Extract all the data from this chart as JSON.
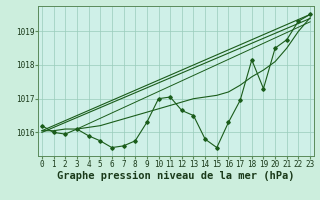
{
  "background_color": "#cceedd",
  "plot_bg_color": "#cff0e8",
  "grid_color": "#99ccbb",
  "line_color": "#1a5c1a",
  "hours": [
    0,
    1,
    2,
    3,
    4,
    5,
    6,
    7,
    8,
    9,
    10,
    11,
    12,
    13,
    14,
    15,
    16,
    17,
    18,
    19,
    20,
    21,
    22,
    23
  ],
  "pressure_actual": [
    1016.2,
    1016.0,
    1015.95,
    1016.1,
    1015.9,
    1015.75,
    1015.55,
    1015.6,
    1015.75,
    1016.3,
    1017.0,
    1017.05,
    1016.65,
    1016.5,
    1015.8,
    1015.55,
    1016.3,
    1016.95,
    1018.15,
    1017.3,
    1018.5,
    1018.75,
    1019.3,
    1019.5
  ],
  "pressure_smooth1": [
    1016.05,
    1016.05,
    1016.1,
    1016.1,
    1016.15,
    1016.2,
    1016.3,
    1016.4,
    1016.5,
    1016.6,
    1016.7,
    1016.8,
    1016.9,
    1017.0,
    1017.05,
    1017.1,
    1017.2,
    1017.4,
    1017.65,
    1017.85,
    1018.1,
    1018.5,
    1019.0,
    1019.4
  ],
  "pressure_smooth2": [
    1016.0,
    1016.02,
    1016.05,
    1016.08,
    1016.12,
    1016.17,
    1016.25,
    1016.35,
    1016.45,
    1016.55,
    1016.65,
    1016.75,
    1016.85,
    1016.95,
    1017.0,
    1017.05,
    1017.15,
    1017.35,
    1017.6,
    1017.8,
    1018.05,
    1018.45,
    1018.95,
    1019.35
  ],
  "pressure_linear1": [
    1016.0,
    1016.05,
    1016.1,
    1016.15,
    1016.2,
    1016.27,
    1016.35,
    1016.45,
    1016.55,
    1016.65,
    1016.75,
    1016.85,
    1016.93,
    1017.0,
    1017.06,
    1017.12,
    1017.2,
    1017.4,
    1017.65,
    1017.88,
    1018.12,
    1018.52,
    1019.0,
    1019.42
  ],
  "ylim": [
    1015.3,
    1019.75
  ],
  "yticks": [
    1016,
    1017,
    1018,
    1019
  ],
  "xlabel": "Graphe pression niveau de la mer (hPa)",
  "tick_fontsize": 5.5,
  "label_fontsize": 7.5
}
